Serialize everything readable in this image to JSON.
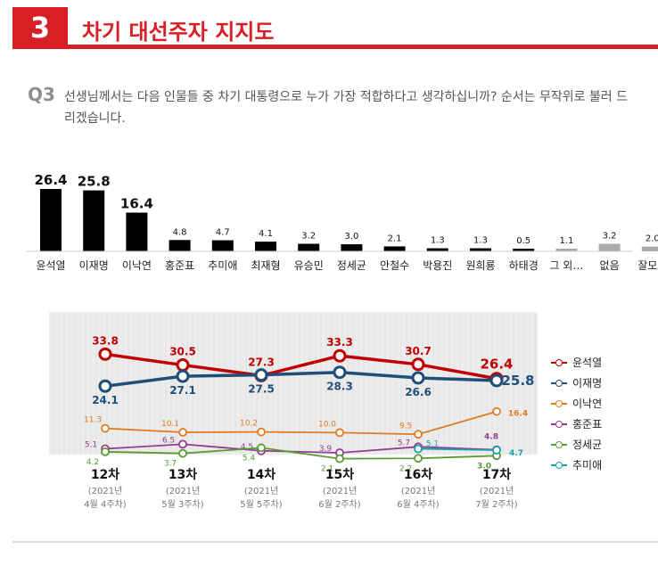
{
  "header": {
    "number": "3",
    "title": "차기 대선주자 지지도"
  },
  "question": {
    "label": "Q3",
    "text": "선생님께서는 다음 인물들 중 차기 대통령으로 누가 가장 적합하다고 생각하십니까? 순서는 무작위로 불러 드리겠습니다."
  },
  "colors": {
    "accent": "#d81f26",
    "bar": "#000000",
    "bar_other": "#aaaaaa",
    "plot_bg": "#ececec"
  },
  "chart_data": [
    {
      "type": "bar",
      "categories": [
        "윤석열",
        "이재명",
        "이낙연",
        "홍준표",
        "추미애",
        "최재형",
        "유승민",
        "정세균",
        "안철수",
        "박용진",
        "원희룡",
        "하태경",
        "그 외…",
        "없음",
        "잘모름"
      ],
      "values": [
        26.4,
        25.8,
        16.4,
        4.8,
        4.7,
        4.1,
        3.2,
        3.0,
        2.1,
        1.3,
        1.3,
        0.5,
        1.1,
        3.2,
        2.0
      ],
      "value_labels": [
        "26.4",
        "25.8",
        "16.4",
        "4.8",
        "4.7",
        "4.1",
        "3.2",
        "3.0",
        "2.1",
        "1.3",
        "1.3",
        "0.5",
        "1.1",
        "3.2",
        "2.0"
      ],
      "colors": [
        "#000000",
        "#000000",
        "#000000",
        "#000000",
        "#000000",
        "#000000",
        "#000000",
        "#000000",
        "#000000",
        "#000000",
        "#000000",
        "#000000",
        "#aaaaaa",
        "#aaaaaa",
        "#aaaaaa"
      ]
    },
    {
      "type": "line",
      "x": [
        "12차",
        "13차",
        "14차",
        "15차",
        "16차",
        "17차"
      ],
      "x_sublabels": [
        [
          "(2021년",
          "4월 4주차)"
        ],
        [
          "(2021년",
          "5월 3주차)"
        ],
        [
          "(2021년",
          "5월 5주차)"
        ],
        [
          "(2021년",
          "6월 2주차)"
        ],
        [
          "(2021년",
          "6월 4주차)"
        ],
        [
          "(2021년",
          "7월 2주차)"
        ]
      ],
      "ylim": [
        0,
        36
      ],
      "grid": true,
      "legend": "right",
      "series": [
        {
          "name": "윤석열",
          "color": "#c00000",
          "values": [
            33.8,
            30.5,
            27.3,
            33.3,
            30.7,
            26.4
          ],
          "labels": [
            "33.8",
            "30.5",
            "27.3",
            "33.3",
            "30.7",
            "26.4"
          ]
        },
        {
          "name": "이재명",
          "color": "#1f4e79",
          "values": [
            24.1,
            27.1,
            27.5,
            28.3,
            26.6,
            25.8
          ],
          "labels": [
            "24.1",
            "27.1",
            "27.5",
            "28.3",
            "26.6",
            "25.8"
          ]
        },
        {
          "name": "이낙연",
          "color": "#e07b22",
          "values": [
            11.3,
            10.1,
            10.2,
            10.0,
            9.5,
            16.4
          ],
          "labels": [
            "11.3",
            "10.1",
            "10.2",
            "10.0",
            "9.5",
            "16.4"
          ]
        },
        {
          "name": "홍준표",
          "color": "#8e3f8e",
          "values": [
            5.1,
            6.5,
            4.5,
            3.9,
            5.7,
            4.8
          ],
          "labels": [
            "5.1",
            "6.5",
            "4.5",
            "3.9",
            "5.7",
            "4.8"
          ]
        },
        {
          "name": "정세균",
          "color": "#5b9a33",
          "values": [
            4.2,
            3.7,
            5.4,
            2.1,
            2.2,
            3.0
          ],
          "labels": [
            "4.2",
            "3.7",
            "5.4",
            "2.1",
            "2.2",
            "3.0"
          ]
        },
        {
          "name": "추미애",
          "color": "#17a0a8",
          "values": [
            null,
            null,
            null,
            null,
            5.1,
            4.7
          ],
          "labels": [
            "",
            "",
            "",
            "",
            "5.1",
            "4.7"
          ]
        }
      ]
    }
  ]
}
